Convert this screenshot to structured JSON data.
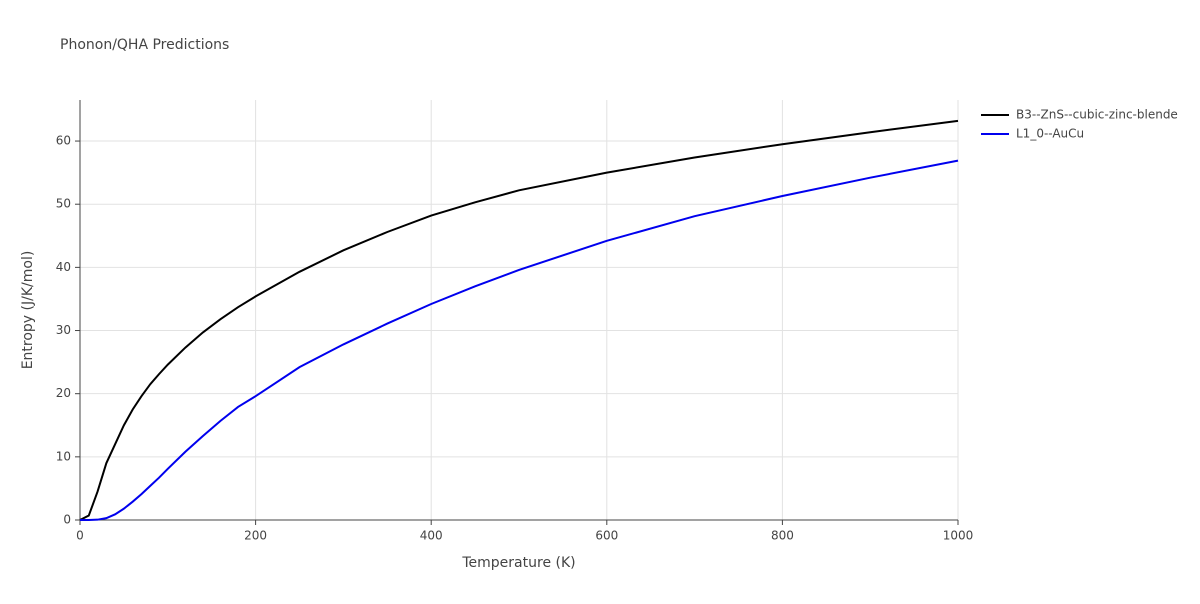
{
  "chart_data": {
    "type": "line",
    "title": "Phonon/QHA Predictions",
    "x_label": "Temperature (K)",
    "y_label": "Entropy (J/K/mol)",
    "x": [
      0,
      10,
      20,
      30,
      40,
      50,
      60,
      70,
      80,
      90,
      100,
      120,
      140,
      160,
      180,
      200,
      250,
      300,
      350,
      400,
      450,
      500,
      600,
      700,
      800,
      900,
      1000
    ],
    "series": [
      {
        "name": "B3--ZnS--cubic-zinc-blende",
        "color": "#000000",
        "values": [
          0,
          0.7,
          4.5,
          9.0,
          12.0,
          15.0,
          17.5,
          19.6,
          21.5,
          23.1,
          24.6,
          27.3,
          29.7,
          31.8,
          33.7,
          35.4,
          39.3,
          42.7,
          45.6,
          48.2,
          50.3,
          52.2,
          55.0,
          57.4,
          59.5,
          61.4,
          63.2
        ]
      },
      {
        "name": "L1_0--AuCu",
        "color": "#0000ee",
        "values": [
          0,
          0,
          0.05,
          0.3,
          0.9,
          1.8,
          2.9,
          4.1,
          5.4,
          6.7,
          8.1,
          10.8,
          13.3,
          15.7,
          17.9,
          19.6,
          24.2,
          27.8,
          31.1,
          34.2,
          37.0,
          39.6,
          44.2,
          48.1,
          51.3,
          54.2,
          56.9
        ]
      }
    ],
    "xlim": [
      0,
      1000
    ],
    "xticks": [
      0,
      200,
      400,
      600,
      800,
      1000
    ],
    "ylim": [
      0,
      66.5
    ],
    "yticks": [
      0,
      10,
      20,
      30,
      40,
      50,
      60
    ],
    "grid": true,
    "legend": "right"
  }
}
